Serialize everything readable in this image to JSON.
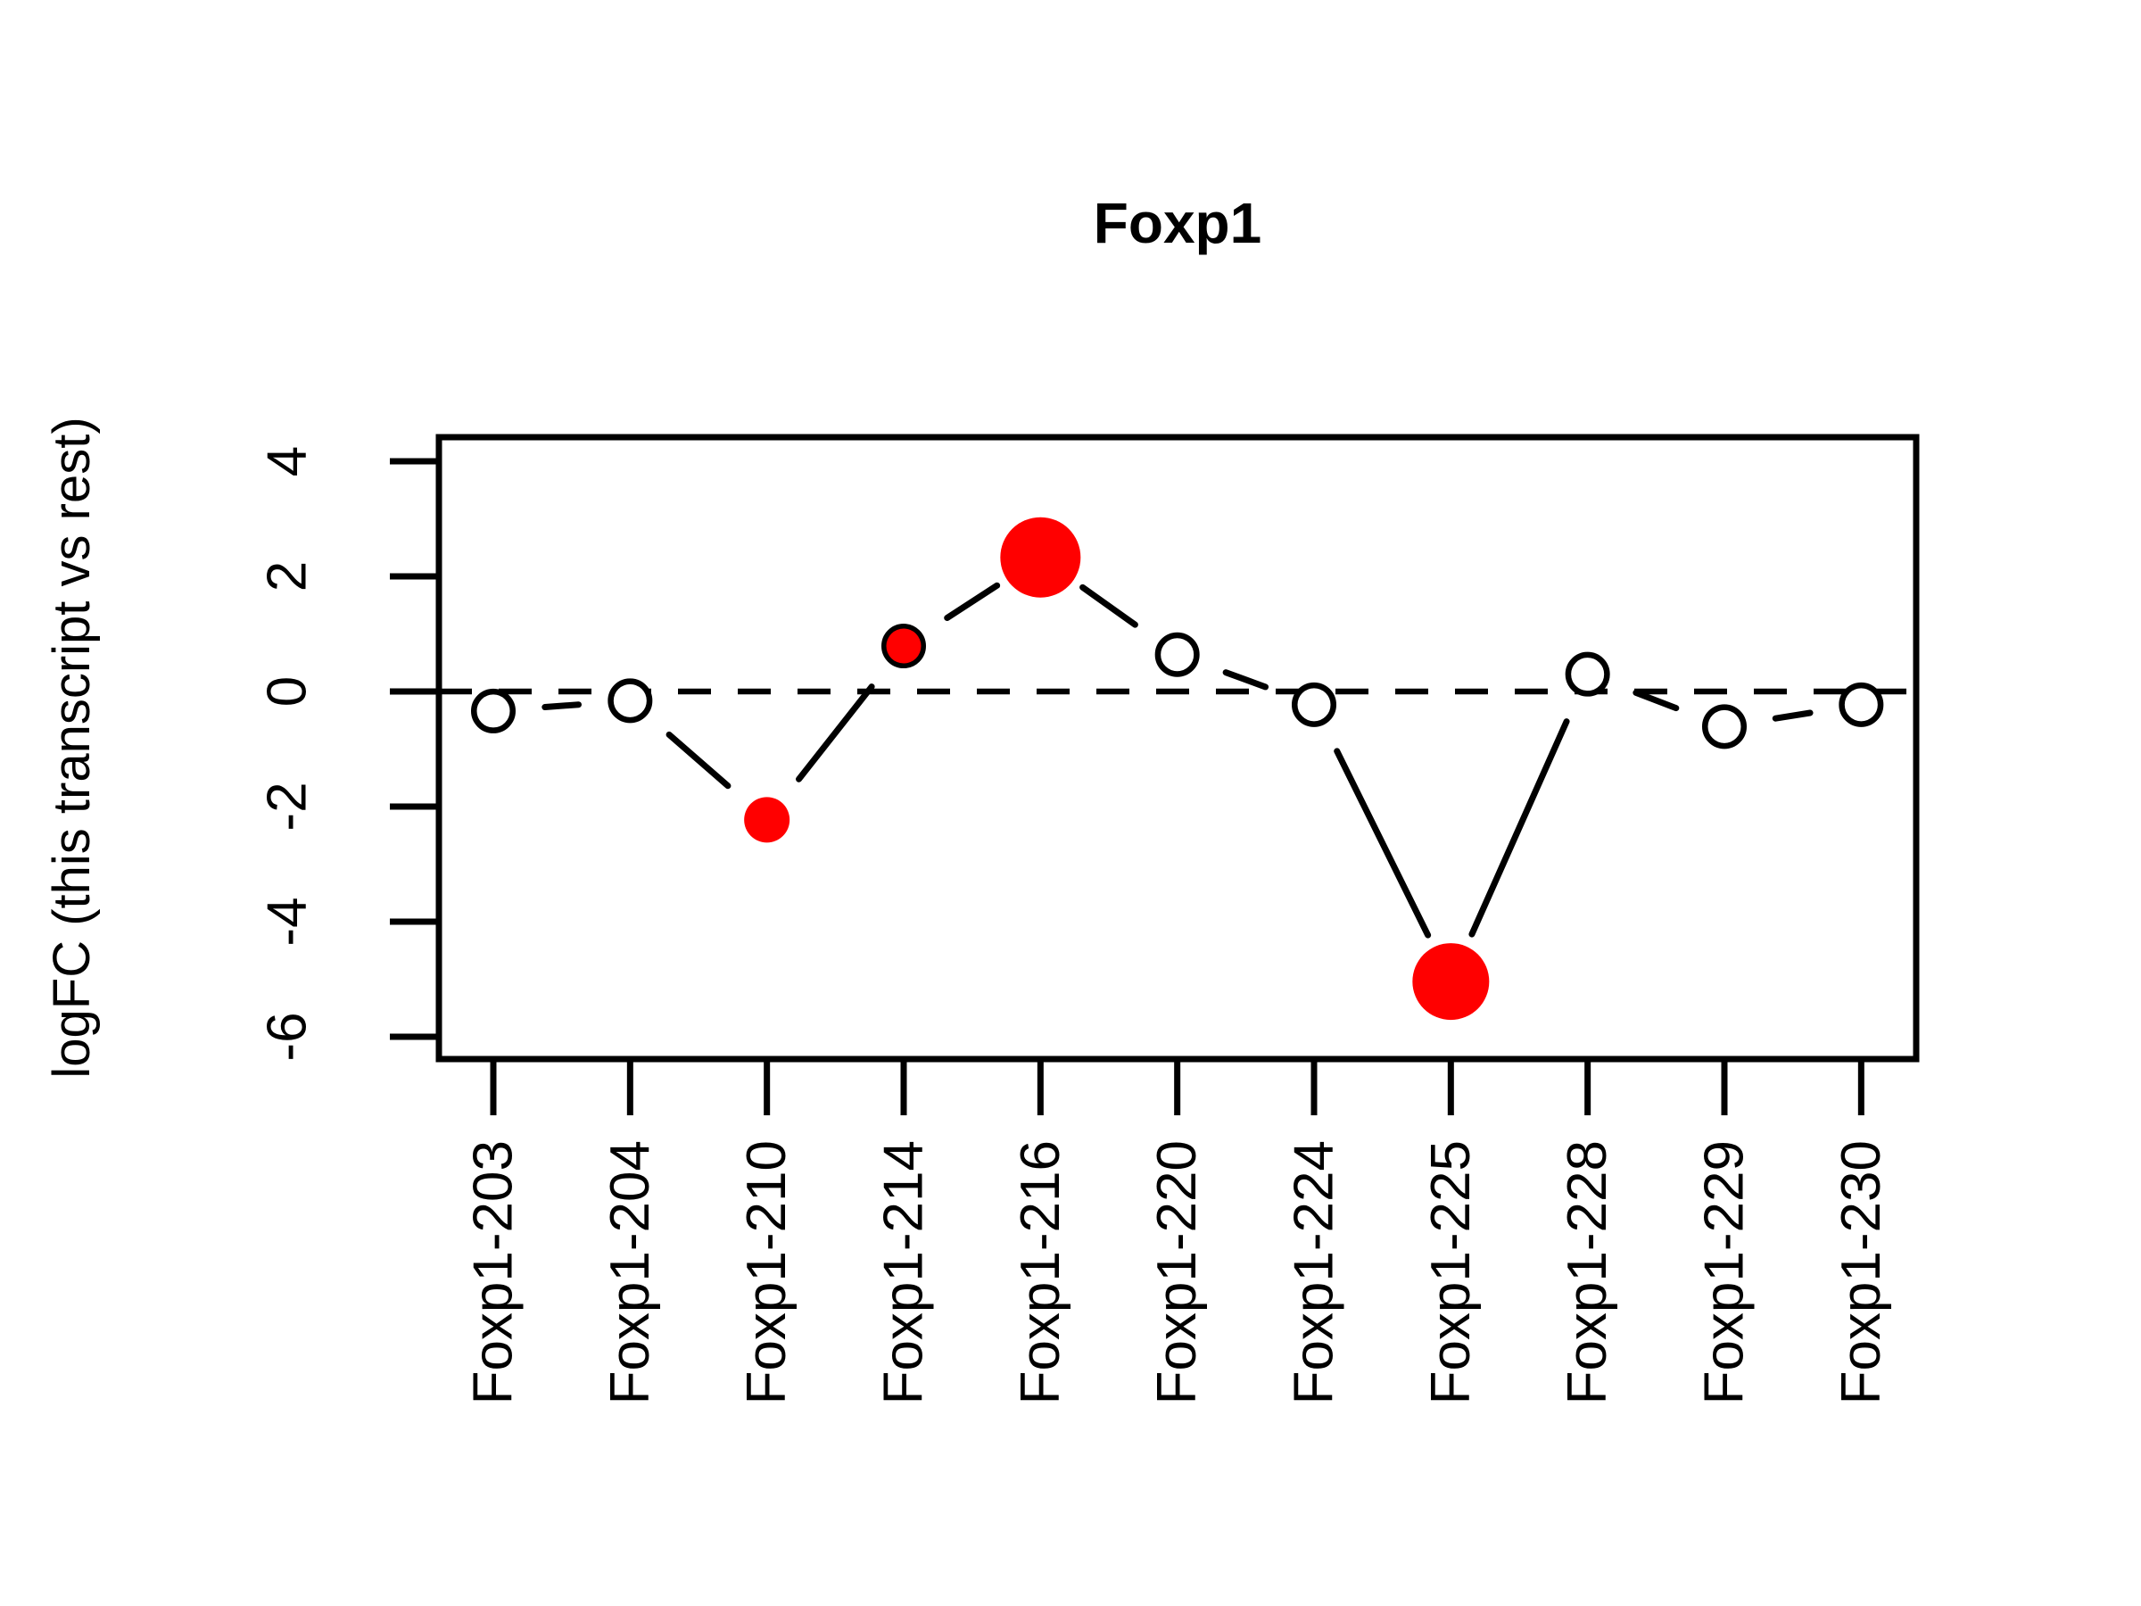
{
  "figure": {
    "title": "Foxp1",
    "y_axis_label": "logFC (this transcript vs rest)"
  },
  "chart_data": {
    "type": "line",
    "title": "Foxp1",
    "xlabel": "",
    "ylabel": "logFC (this transcript vs rest)",
    "categories": [
      "Foxp1-203",
      "Foxp1-204",
      "Foxp1-210",
      "Foxp1-214",
      "Foxp1-216",
      "Foxp1-220",
      "Foxp1-224",
      "Foxp1-225",
      "Foxp1-228",
      "Foxp1-229",
      "Foxp1-230"
    ],
    "values": [
      -0.34,
      -0.16,
      -2.23,
      0.79,
      2.33,
      0.64,
      -0.23,
      -5.04,
      0.3,
      -0.61,
      -0.23
    ],
    "significant": [
      false,
      false,
      true,
      true,
      true,
      false,
      false,
      true,
      false,
      false,
      false
    ],
    "significant_marker_radius_px": [
      null,
      null,
      25.5,
      19.5,
      45,
      null,
      null,
      43,
      null,
      null,
      null
    ],
    "yticks": [
      4,
      2,
      0,
      -2,
      -4,
      -6
    ],
    "ylim_displayed": [
      -6.4,
      4.4
    ],
    "zero_line": "dashed",
    "grid": false,
    "legend": "none",
    "line_style": "solid-segments-with-gaps-around-points",
    "x_labels_rotation_deg": 90,
    "colors": {
      "significant_fill": "#FF0000",
      "open_marker_fill": "#FFFFFF",
      "stroke": "#000000",
      "background": "#FFFFFF"
    }
  }
}
